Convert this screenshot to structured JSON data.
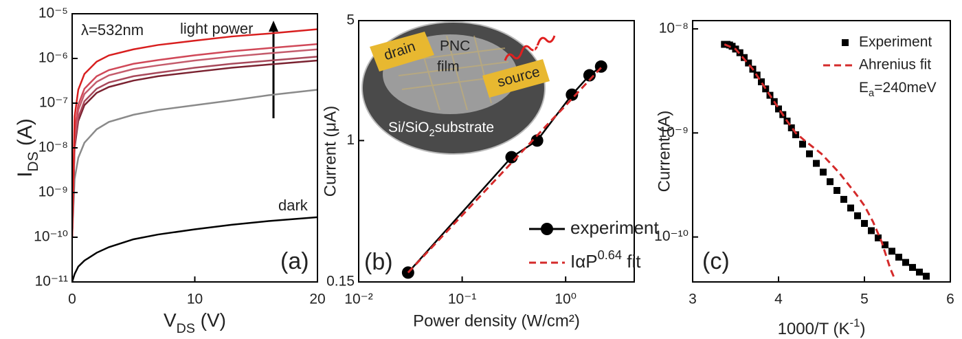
{
  "chart_data": [
    {
      "type": "line",
      "panel_label": "(a)",
      "yscale": "log",
      "xlabel": [
        "V",
        {
          "sub": "DS"
        },
        " (V)"
      ],
      "ylabel": [
        "I",
        {
          "sub": "DS"
        },
        " (A)"
      ],
      "wavelength_label": "λ=532nm",
      "arrow_label": "light power",
      "dark_label": "dark",
      "xlim": [
        0,
        20
      ],
      "xticks": [
        0,
        10,
        20
      ],
      "ylim": [
        1e-11,
        1e-05
      ],
      "yticks": [
        {
          "value": 1e-05,
          "label": "10⁻⁵"
        },
        {
          "value": 1e-06,
          "label": "10⁻⁶"
        },
        {
          "value": 1e-07,
          "label": "10⁻⁷"
        },
        {
          "value": 1e-08,
          "label": "10⁻⁸"
        },
        {
          "value": 1e-09,
          "label": "10⁻⁹"
        },
        {
          "value": 1e-10,
          "label": "10⁻¹⁰"
        },
        {
          "value": 1e-11,
          "label": "10⁻¹¹"
        }
      ],
      "x": [
        0,
        0.2,
        0.5,
        1,
        2,
        3,
        5,
        7,
        10,
        13,
        16,
        20
      ],
      "series": [
        {
          "color": "#000000",
          "values": [
            1e-11,
            1.5e-11,
            2.2e-11,
            3e-11,
            4.5e-11,
            6e-11,
            9e-11,
            1.15e-10,
            1.5e-10,
            1.9e-10,
            2.3e-10,
            2.8e-10
          ]
        },
        {
          "color": "#8a8a8a",
          "values": [
            1e-10,
            2e-09,
            6e-09,
            1.3e-08,
            2.6e-08,
            3.8e-08,
            5.5e-08,
            7e-08,
            9e-08,
            1.15e-07,
            1.5e-07,
            2e-07
          ]
        },
        {
          "color": "#7a2230",
          "values": [
            1e-10,
            1e-08,
            4e-08,
            9e-08,
            1.7e-07,
            2.3e-07,
            3.2e-07,
            4e-07,
            5e-07,
            6.2e-07,
            7.3e-07,
            9e-07
          ]
        },
        {
          "color": "#a8485a",
          "values": [
            1e-10,
            1.2e-08,
            4.8e-08,
            1.1e-07,
            2.1e-07,
            2.9e-07,
            4e-07,
            4.8e-07,
            6.2e-07,
            7.6e-07,
            8.9e-07,
            1.1e-06
          ]
        },
        {
          "color": "#c45c6c",
          "values": [
            1e-10,
            1.8e-08,
            7e-08,
            1.6e-07,
            3e-07,
            4.2e-07,
            5.8e-07,
            7e-07,
            9e-07,
            1.1e-06,
            1.3e-06,
            1.6e-06
          ]
        },
        {
          "color": "#d04858",
          "values": [
            1e-10,
            2.3e-08,
            9.2e-08,
            2.1e-07,
            4e-07,
            5.5e-07,
            7.6e-07,
            9.2e-07,
            1.18e-06,
            1.45e-06,
            1.7e-06,
            2.1e-06
          ]
        },
        {
          "color": "#d81e1e",
          "values": [
            1e-10,
            5e-08,
            2e-07,
            4.5e-07,
            8.5e-07,
            1.17e-06,
            1.6e-06,
            2e-06,
            2.5e-06,
            3.1e-06,
            3.6e-06,
            4.5e-06
          ]
        }
      ]
    },
    {
      "type": "line",
      "panel_label": "(b)",
      "xscale": "log",
      "yscale": "log",
      "xlabel": "Power density (W/cm²)",
      "ylabel": "Current (μA)",
      "inset": {
        "drain": "drain",
        "material": "PNC",
        "film": "film",
        "source": "source",
        "photon": "hv",
        "substrate": [
          "Si/SiO",
          {
            "sub": "2"
          },
          "substrate"
        ]
      },
      "xlim": [
        0.01,
        4.6
      ],
      "xticks": [
        {
          "value": 0.01,
          "label": "10⁻²"
        },
        {
          "value": 0.1,
          "label": "10⁻¹"
        },
        {
          "value": 1,
          "label": "10⁰"
        }
      ],
      "ylim": [
        0.15,
        5
      ],
      "yticks": [
        0.15,
        1,
        5
      ],
      "series": [
        {
          "name": "experiment",
          "color": "#000000",
          "marker": "circle",
          "line": "solid",
          "x": [
            0.03,
            0.3,
            0.53,
            1.15,
            1.7,
            2.2
          ],
          "values": [
            0.17,
            0.8,
            1.0,
            1.85,
            2.4,
            2.7
          ]
        },
        {
          "name": [
            "IαP",
            {
              "sup": "0.64"
            },
            " fit"
          ],
          "color": "#d42a2a",
          "marker": "none",
          "line": "dashed",
          "x": [
            0.03,
            0.1,
            0.3,
            0.5,
            0.7,
            1,
            1.5,
            2.2
          ],
          "values": [
            0.17,
            0.367,
            0.742,
            1.03,
            1.28,
            1.6,
            2.08,
            2.66
          ]
        }
      ]
    },
    {
      "type": "scatter",
      "panel_label": "(c)",
      "yscale": "log",
      "xlabel": [
        "1000/T (K",
        {
          "sup": "-1"
        },
        ")"
      ],
      "ylabel": "Current (A)",
      "energy_label": [
        "E",
        {
          "sub": "a"
        },
        "=240meV"
      ],
      "xlim": [
        3,
        6
      ],
      "xticks": [
        3,
        4,
        5,
        6
      ],
      "ylim": [
        3.7e-11,
        1.2e-08
      ],
      "yticks": [
        {
          "value": 1e-08,
          "label": "10⁻⁸"
        },
        {
          "value": 1e-09,
          "label": "10⁻⁹"
        },
        {
          "value": 1e-10,
          "label": "10⁻¹⁰"
        }
      ],
      "series": [
        {
          "name": "Experiment",
          "color": "#000000",
          "marker": "square",
          "line": "none",
          "x": [
            3.37,
            3.4,
            3.43,
            3.46,
            3.5,
            3.55,
            3.6,
            3.65,
            3.7,
            3.75,
            3.8,
            3.85,
            3.9,
            3.95,
            4.0,
            4.05,
            4.1,
            4.15,
            4.2,
            4.28,
            4.36,
            4.44,
            4.52,
            4.6,
            4.68,
            4.76,
            4.84,
            4.92,
            5.0,
            5.08,
            5.16,
            5.24,
            5.32,
            5.4,
            5.48,
            5.56,
            5.64,
            5.72
          ],
          "values": [
            7.1e-09,
            7.1e-09,
            7e-09,
            6.8e-09,
            6.4e-09,
            5.9e-09,
            5.3e-09,
            4.7e-09,
            4.1e-09,
            3.6e-09,
            3.1e-09,
            2.65e-09,
            2.3e-09,
            2e-09,
            1.7e-09,
            1.5e-09,
            1.3e-09,
            1.12e-09,
            9.6e-10,
            7.8e-10,
            6.3e-10,
            5.1e-10,
            4.2e-10,
            3.4e-10,
            2.8e-10,
            2.3e-10,
            1.9e-10,
            1.6e-10,
            1.35e-10,
            1.15e-10,
            9.8e-11,
            8.4e-11,
            7.3e-11,
            6.4e-11,
            5.7e-11,
            5.1e-11,
            4.6e-11,
            4.2e-11
          ]
        },
        {
          "name": "Ahrenius fit",
          "color": "#d42a2a",
          "marker": "none",
          "line": "dashed",
          "x": [
            3.37,
            3.5,
            3.7,
            3.9,
            4.1,
            4.2,
            4.3,
            4.5,
            4.7,
            4.9,
            5.0,
            5.1,
            5.2,
            5.3,
            5.35
          ],
          "values": [
            7.1e-09,
            6.4e-09,
            4.1e-09,
            2.3e-09,
            1.3e-09,
            1e-09,
            8.5e-10,
            6.3e-10,
            4.2e-10,
            2.6e-10,
            2e-10,
            1.4e-10,
            9e-11,
            5e-11,
            4e-11
          ]
        }
      ]
    }
  ]
}
